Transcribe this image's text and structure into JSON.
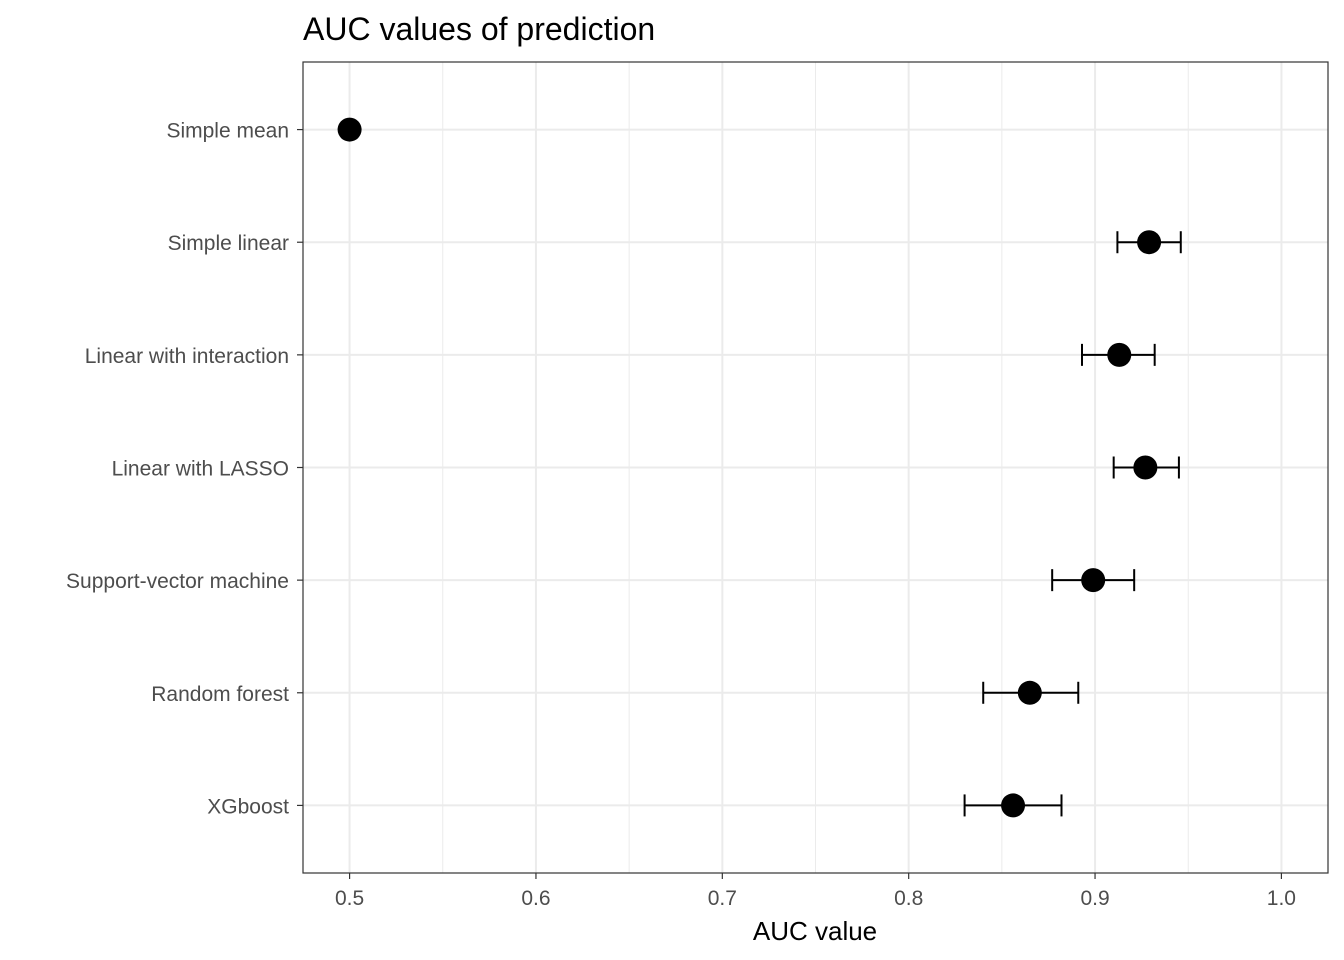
{
  "chart_data": {
    "type": "scatter",
    "title": "AUC values of prediction",
    "xlabel": "AUC value",
    "ylabel": "",
    "xlim": [
      0.475,
      1.025
    ],
    "x_ticks": [
      "0.5",
      "0.6",
      "0.7",
      "0.8",
      "0.9",
      "1.0"
    ],
    "x_tick_values": [
      0.5,
      0.6,
      0.7,
      0.8,
      0.9,
      1.0
    ],
    "grid": true,
    "legend": "none",
    "point_color": "#000000",
    "grid_color": "#ebebeb",
    "categories": [
      "Simple mean",
      "Simple linear",
      "Linear with interaction",
      "Linear with LASSO",
      "Support-vector machine",
      "Random forest",
      "XGboost"
    ],
    "points": [
      {
        "label": "Simple mean",
        "value": 0.5,
        "lower": null,
        "upper": null
      },
      {
        "label": "Simple linear",
        "value": 0.929,
        "lower": 0.912,
        "upper": 0.946
      },
      {
        "label": "Linear with interaction",
        "value": 0.913,
        "lower": 0.893,
        "upper": 0.932
      },
      {
        "label": "Linear with LASSO",
        "value": 0.927,
        "lower": 0.91,
        "upper": 0.945
      },
      {
        "label": "Support-vector machine",
        "value": 0.899,
        "lower": 0.877,
        "upper": 0.921
      },
      {
        "label": "Random forest",
        "value": 0.865,
        "lower": 0.84,
        "upper": 0.891
      },
      {
        "label": "XGboost",
        "value": 0.856,
        "lower": 0.83,
        "upper": 0.882
      }
    ]
  }
}
